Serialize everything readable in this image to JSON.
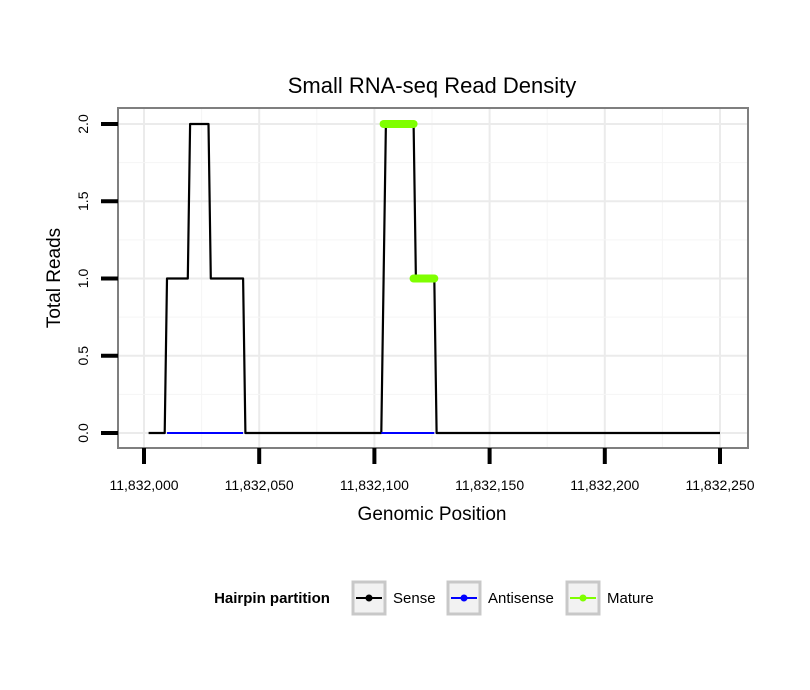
{
  "chart_data": {
    "type": "line",
    "title": "Small RNA-seq Read Density",
    "xlabel": "Genomic Position",
    "ylabel": "Total Reads",
    "xlim": [
      11832000,
      11832250
    ],
    "ylim": [
      0,
      2
    ],
    "x_ticks": [
      11832000,
      11832050,
      11832100,
      11832150,
      11832200,
      11832250
    ],
    "x_tick_labels": [
      "11,832,000",
      "11,832,050",
      "11,832,100",
      "11,832,150",
      "11,832,200",
      "11,832,250"
    ],
    "y_ticks": [
      0,
      0.5,
      1,
      1.5,
      2
    ],
    "y_tick_labels": [
      "0.0",
      "0.5",
      "1.0",
      "1.5",
      "2.0"
    ],
    "grid": true,
    "series": [
      {
        "name": "Sense",
        "color": "#000000",
        "x": [
          11832002,
          11832009,
          11832010,
          11832019,
          11832020,
          11832028,
          11832029,
          11832043,
          11832044,
          11832103,
          11832104,
          11832105,
          11832117,
          11832118,
          11832126,
          11832127,
          11832250
        ],
        "values": [
          0,
          0,
          1,
          1,
          2,
          2,
          1,
          1,
          0,
          0,
          1,
          2,
          2,
          1,
          1,
          0,
          0
        ]
      },
      {
        "name": "Antisense",
        "color": "#0000ff",
        "x": [
          11832010,
          11832043,
          11832103,
          11832126
        ],
        "values": [
          0,
          0,
          0,
          0
        ],
        "segments": [
          [
            0,
            1
          ],
          [
            2,
            3
          ]
        ]
      },
      {
        "name": "Mature",
        "color": "#7fff00",
        "x": [
          11832104,
          11832117,
          11832117,
          11832126
        ],
        "values": [
          2,
          2,
          1,
          1
        ],
        "segments": [
          [
            0,
            1
          ],
          [
            2,
            3
          ]
        ]
      }
    ],
    "legend": {
      "title": "Hairpin partition",
      "position": "bottom",
      "entries": [
        "Sense",
        "Antisense",
        "Mature"
      ]
    }
  }
}
